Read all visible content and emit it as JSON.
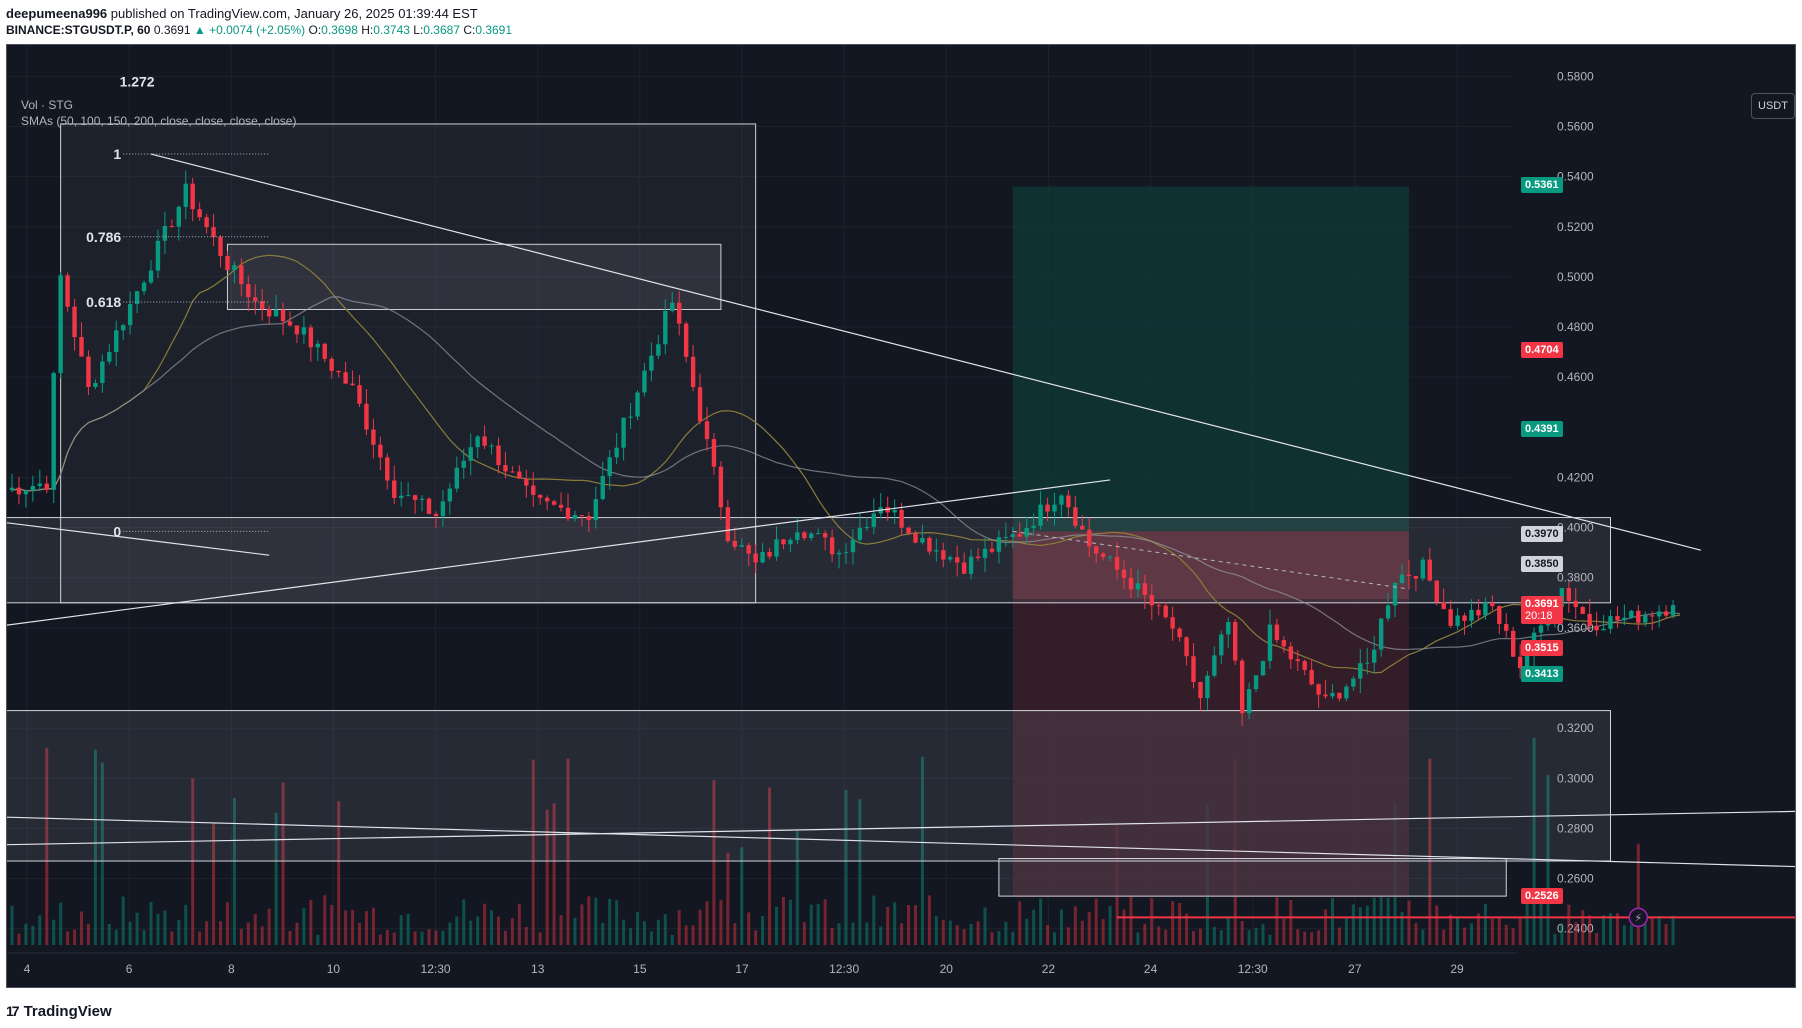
{
  "header": {
    "author": "deepumeena996",
    "published_text": "published on TradingView.com, January 26, 2025 01:39:44 EST",
    "symbol_interval": "BINANCE:STGUSDT.P, 60",
    "last": "0.3691",
    "change": "▲ +0.0074 (+2.05%)",
    "o_label": "O:",
    "o_value": "0.3698",
    "h_label": "H:",
    "h_value": "0.3743",
    "l_label": "L:",
    "l_value": "0.3687",
    "c_label": "C:",
    "c_value": "0.3691"
  },
  "legend": {
    "vol": "Vol · STG",
    "smas": "SMAs (50, 100, 150, 200, close, close, close, close)"
  },
  "unit_button": "USDT",
  "footer": {
    "brand": "TradingView",
    "logo_icon": "tradingview-logo-icon"
  },
  "colors": {
    "bg": "#131722",
    "up": "#089981",
    "down": "#f23645",
    "sma50": "#8a7d3a",
    "sma100": "#9598a1",
    "long_profit": "#0f3b38",
    "long_loss": "#3b1f2b"
  },
  "fib_labels": [
    {
      "text": "1.272",
      "price": 0.578
    },
    {
      "text": "1",
      "price": 0.549
    },
    {
      "text": "0.786",
      "price": 0.516
    },
    {
      "text": "0.618",
      "price": 0.49
    },
    {
      "text": "0",
      "price": 0.3985
    }
  ],
  "price_labels": [
    {
      "text": "0.5361",
      "price": 0.5361,
      "bg": "#089981",
      "fg": "#ffffff"
    },
    {
      "text": "0.4704",
      "price": 0.4704,
      "bg": "#f23645",
      "fg": "#ffffff"
    },
    {
      "text": "0.4391",
      "price": 0.4391,
      "bg": "#089981",
      "fg": "#ffffff"
    },
    {
      "text": "0.3970",
      "price": 0.397,
      "bg": "#d1d4dc",
      "fg": "#131722"
    },
    {
      "text": "0.3850",
      "price": 0.385,
      "bg": "#d1d4dc",
      "fg": "#131722"
    },
    {
      "text": "0.3691",
      "sub": "20:18",
      "price": 0.3691,
      "bg": "#f23645",
      "fg": "#ffffff"
    },
    {
      "text": "0.3515",
      "price": 0.3515,
      "bg": "#f23645",
      "fg": "#ffffff"
    },
    {
      "text": "0.3413",
      "price": 0.3413,
      "bg": "#089981",
      "fg": "#ffffff"
    },
    {
      "text": "0.2526",
      "price": 0.2526,
      "bg": "#f23645",
      "fg": "#ffffff"
    }
  ],
  "chart_data": {
    "type": "candlestick",
    "symbol": "STGUSDT.P",
    "interval": "60",
    "ylim": [
      0.2335,
      0.5925
    ],
    "y_ticks": [
      "0.5800",
      "0.5600",
      "0.5400",
      "0.5200",
      "0.5000",
      "0.4800",
      "0.4600",
      "0.4200",
      "0.4000",
      "0.3800",
      "0.3600",
      "0.3200",
      "0.3000",
      "0.2800",
      "0.2600",
      "0.2400"
    ],
    "x_ticks": [
      "4",
      "6",
      "8",
      "10",
      "12:30",
      "13",
      "15",
      "17",
      "12:30",
      "20",
      "22",
      "24",
      "12:30",
      "27",
      "29"
    ],
    "key_points": [
      {
        "x": 0,
        "y": 0.415
      },
      {
        "x": 6,
        "y": 0.418
      },
      {
        "x": 8,
        "y": 0.5
      },
      {
        "x": 12,
        "y": 0.455
      },
      {
        "x": 20,
        "y": 0.5
      },
      {
        "x": 26,
        "y": 0.534
      },
      {
        "x": 32,
        "y": 0.505
      },
      {
        "x": 36,
        "y": 0.49
      },
      {
        "x": 42,
        "y": 0.48
      },
      {
        "x": 50,
        "y": 0.455
      },
      {
        "x": 56,
        "y": 0.415
      },
      {
        "x": 62,
        "y": 0.405
      },
      {
        "x": 68,
        "y": 0.438
      },
      {
        "x": 76,
        "y": 0.41
      },
      {
        "x": 84,
        "y": 0.405
      },
      {
        "x": 92,
        "y": 0.462
      },
      {
        "x": 96,
        "y": 0.49
      },
      {
        "x": 100,
        "y": 0.445
      },
      {
        "x": 104,
        "y": 0.398
      },
      {
        "x": 108,
        "y": 0.385
      },
      {
        "x": 114,
        "y": 0.401
      },
      {
        "x": 120,
        "y": 0.39
      },
      {
        "x": 126,
        "y": 0.41
      },
      {
        "x": 132,
        "y": 0.395
      },
      {
        "x": 138,
        "y": 0.385
      },
      {
        "x": 146,
        "y": 0.398
      },
      {
        "x": 152,
        "y": 0.415
      },
      {
        "x": 156,
        "y": 0.393
      },
      {
        "x": 162,
        "y": 0.378
      },
      {
        "x": 168,
        "y": 0.36
      },
      {
        "x": 172,
        "y": 0.332
      },
      {
        "x": 176,
        "y": 0.362
      },
      {
        "x": 178,
        "y": 0.325
      },
      {
        "x": 182,
        "y": 0.358
      },
      {
        "x": 186,
        "y": 0.345
      },
      {
        "x": 190,
        "y": 0.33
      },
      {
        "x": 196,
        "y": 0.345
      },
      {
        "x": 200,
        "y": 0.38
      },
      {
        "x": 204,
        "y": 0.384
      },
      {
        "x": 208,
        "y": 0.363
      },
      {
        "x": 214,
        "y": 0.368
      },
      {
        "x": 218,
        "y": 0.345
      },
      {
        "x": 224,
        "y": 0.376
      },
      {
        "x": 228,
        "y": 0.362
      },
      {
        "x": 234,
        "y": 0.364
      },
      {
        "x": 240,
        "y": 0.369
      }
    ],
    "n_candles": 240,
    "last_close": 0.3691,
    "sma_series": [
      "SMA 50",
      "SMA 100"
    ],
    "drawings": {
      "zones": [
        {
          "x0": -1,
          "x1": 230,
          "y0": 0.404,
          "y1": 0.37
        },
        {
          "x0": -1,
          "x1": 230,
          "y0": 0.327,
          "y1": 0.267
        },
        {
          "x0": 142,
          "x1": 215,
          "y0": 0.268,
          "y1": 0.253
        },
        {
          "x0": 31,
          "x1": 102,
          "y0": 0.513,
          "y1": 0.487
        }
      ],
      "fib_box": {
        "x0": 7,
        "x1": 107,
        "y0": 0.561,
        "y1": 0.37
      },
      "long_position": {
        "x0": 144,
        "x1": 201,
        "entry": 0.3985,
        "target": 0.5361,
        "stop": 0.2526,
        "stop_top": 0.3715
      },
      "trend_lines": [
        {
          "x0": 20,
          "y0": 0.549,
          "x1": 243,
          "y1": 0.391
        },
        {
          "x0": -1,
          "y0": 0.361,
          "x1": 158,
          "y1": 0.419
        },
        {
          "x0": -1,
          "y0": 0.402,
          "x1": 37,
          "y1": 0.389
        },
        {
          "x0": -1,
          "y0": 0.2735,
          "x1": 280,
          "y1": 0.288
        },
        {
          "x0": -1,
          "y0": 0.2845,
          "x1": 280,
          "y1": 0.263
        }
      ],
      "alert_line": {
        "x0": 159,
        "x1": 260,
        "y": 0.2445
      }
    }
  }
}
